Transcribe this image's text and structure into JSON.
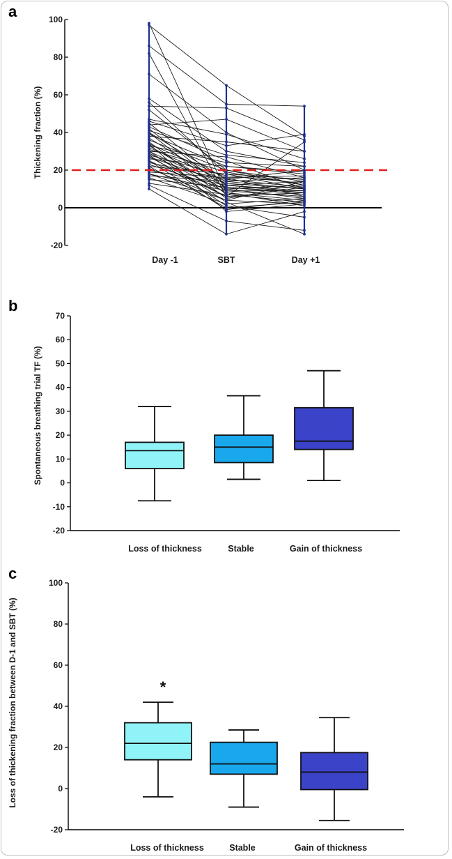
{
  "chart_data": [
    {
      "panel_label": "a",
      "type": "line",
      "ylabel": "Thickening fraction  (%)",
      "categories": [
        "Day -1",
        "SBT",
        "Day +1"
      ],
      "ylim": [
        -20,
        100
      ],
      "yticks": [
        -20,
        0,
        20,
        40,
        60,
        80,
        100
      ],
      "threshold": 20,
      "colors": {
        "line": "#1a1a1a",
        "point": "#1f2f8f",
        "threshold": "#e0201e",
        "zero": "#000000"
      },
      "subjects": [
        [
          98,
          8,
          1
        ],
        [
          97,
          65,
          38
        ],
        [
          86,
          55,
          54
        ],
        [
          82,
          6,
          8
        ],
        [
          71,
          40,
          20
        ],
        [
          58,
          30,
          22
        ],
        [
          56,
          18,
          10
        ],
        [
          54,
          53,
          36
        ],
        [
          52,
          20,
          12
        ],
        [
          47,
          39,
          26
        ],
        [
          46,
          33,
          39
        ],
        [
          45,
          12,
          14
        ],
        [
          44,
          47,
          30
        ],
        [
          43,
          25,
          10
        ],
        [
          42,
          10,
          5
        ],
        [
          41,
          28,
          24
        ],
        [
          40,
          15,
          20
        ],
        [
          40,
          7,
          3
        ],
        [
          39,
          22,
          18
        ],
        [
          38,
          35,
          30
        ],
        [
          37,
          12,
          8
        ],
        [
          36,
          20,
          14
        ],
        [
          35,
          5,
          11
        ],
        [
          34,
          16,
          6
        ],
        [
          33,
          24,
          22
        ],
        [
          33,
          9,
          9
        ],
        [
          32,
          14,
          16
        ],
        [
          31,
          19,
          12
        ],
        [
          30,
          11,
          7
        ],
        [
          30,
          27,
          16
        ],
        [
          29,
          8,
          4
        ],
        [
          28,
          17,
          13
        ],
        [
          27,
          13,
          10
        ],
        [
          26,
          22,
          19
        ],
        [
          25,
          6,
          8
        ],
        [
          24,
          15,
          11
        ],
        [
          23,
          10,
          12
        ],
        [
          22,
          18,
          15
        ],
        [
          21,
          4,
          2
        ],
        [
          20,
          12,
          9
        ],
        [
          19,
          16,
          17
        ],
        [
          18,
          9,
          6
        ],
        [
          17,
          14,
          10
        ],
        [
          16,
          2,
          5
        ],
        [
          15,
          11,
          8
        ],
        [
          13,
          7,
          3
        ],
        [
          12,
          -7,
          -12
        ],
        [
          10,
          -14,
          -2
        ],
        [
          34,
          -2,
          2
        ],
        [
          28,
          1,
          -5
        ],
        [
          25,
          -1,
          4
        ],
        [
          30,
          3,
          -14
        ],
        [
          22,
          0,
          3
        ],
        [
          27,
          6,
          35
        ],
        [
          18,
          4,
          14
        ]
      ]
    },
    {
      "panel_label": "b",
      "type": "box",
      "ylabel": "Spontaneous  breathing  trial TF (%)",
      "categories": [
        "Loss of thickness",
        "Stable",
        "Gain of thickness"
      ],
      "ylim": [
        -20,
        70
      ],
      "yticks": [
        -20,
        -10,
        0,
        10,
        20,
        30,
        40,
        50,
        60,
        70
      ],
      "colors": [
        "#8ff3f8",
        "#19a8ec",
        "#3b43c9"
      ],
      "boxes": [
        {
          "whisker_low": -7.5,
          "q1": 6,
          "median": 13.5,
          "q3": 17,
          "whisker_high": 32
        },
        {
          "whisker_low": 1.5,
          "q1": 8.5,
          "median": 15,
          "q3": 20,
          "whisker_high": 36.5
        },
        {
          "whisker_low": 1,
          "q1": 14,
          "median": 17.5,
          "q3": 31.5,
          "whisker_high": 47
        }
      ]
    },
    {
      "panel_label": "c",
      "type": "box",
      "ylabel": "Loss of thickening  fraction between D-1 and SBT (%)",
      "categories": [
        "Loss of thickness",
        "Stable",
        "Gain of thickness"
      ],
      "ylim": [
        -20,
        100
      ],
      "yticks": [
        -20,
        0,
        20,
        40,
        60,
        80,
        100
      ],
      "colors": [
        "#8ff3f8",
        "#19a8ec",
        "#3b43c9"
      ],
      "annotation": "*",
      "boxes": [
        {
          "whisker_low": -4,
          "q1": 14,
          "median": 22,
          "q3": 32,
          "whisker_high": 42
        },
        {
          "whisker_low": -9,
          "q1": 7,
          "median": 12,
          "q3": 22.5,
          "whisker_high": 28.5
        },
        {
          "whisker_low": -15.5,
          "q1": -0.5,
          "median": 8,
          "q3": 17.5,
          "whisker_high": 34.5
        }
      ]
    }
  ]
}
